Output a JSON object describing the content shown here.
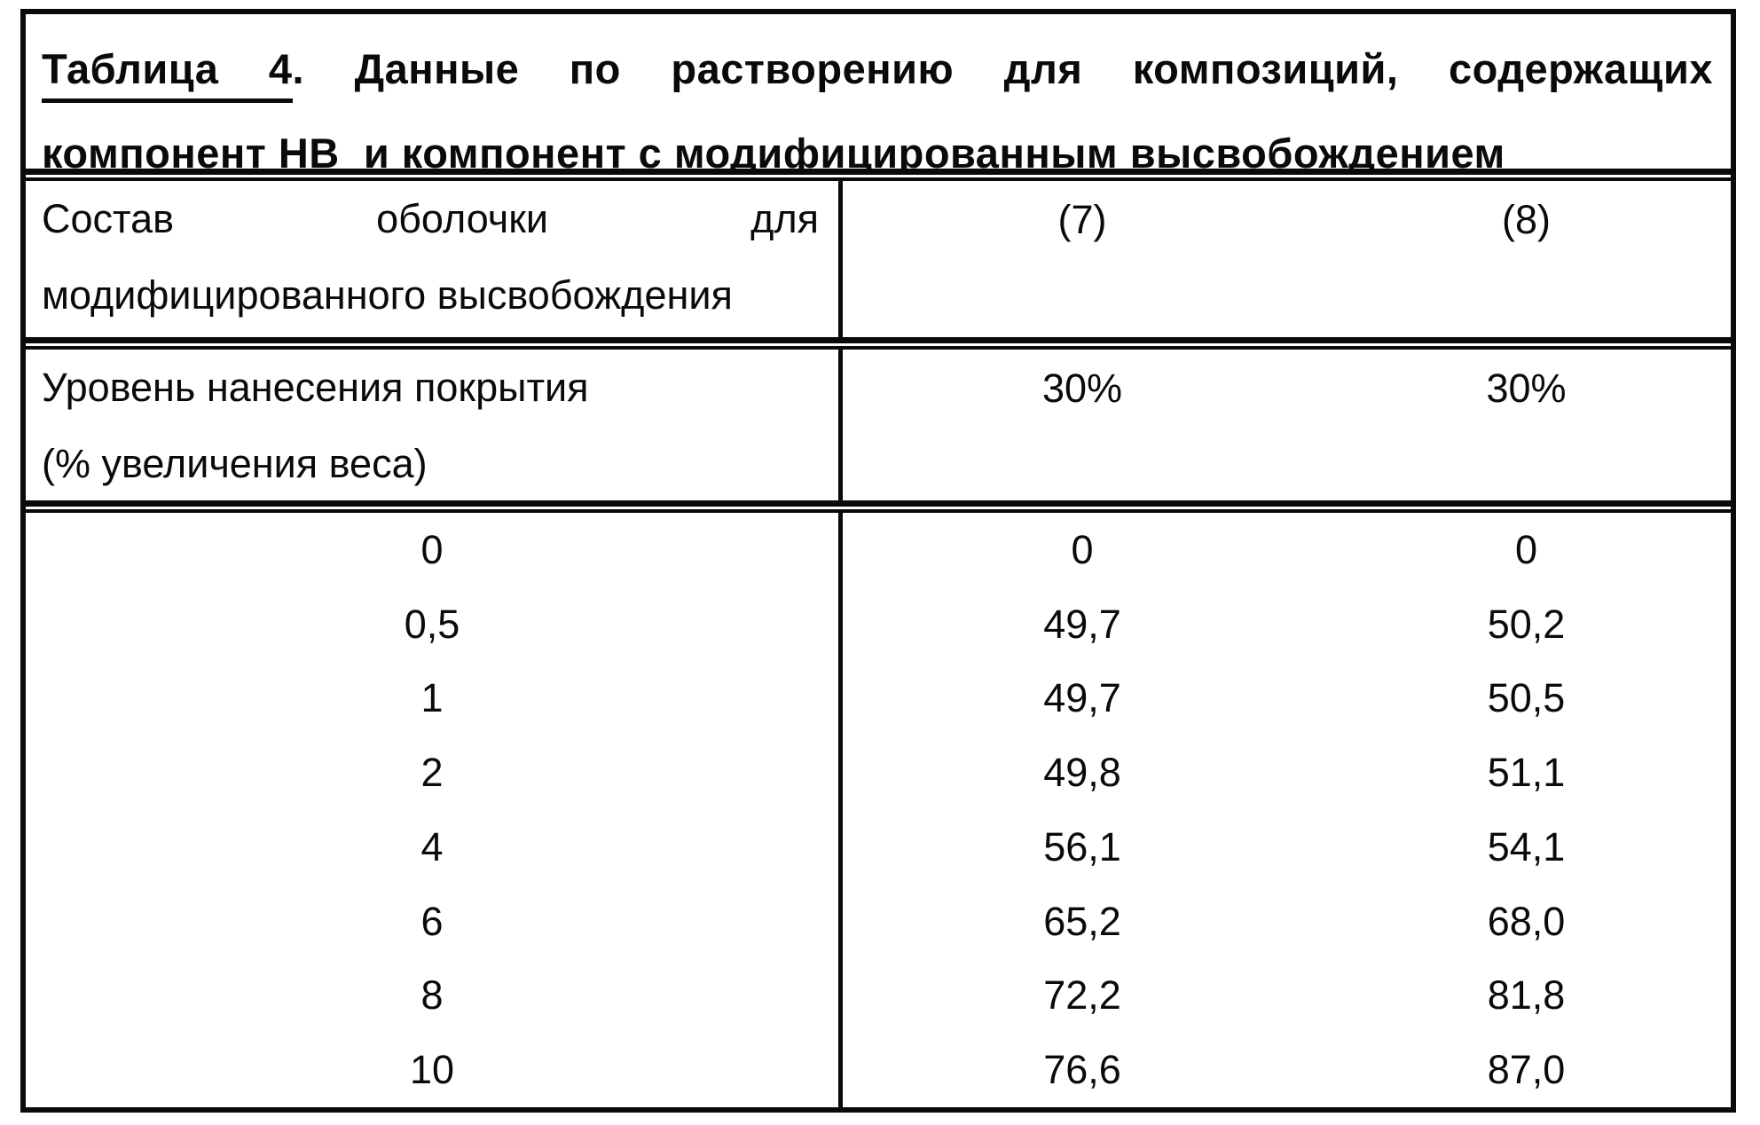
{
  "document": {
    "kind": "scanned patent table page",
    "language": "Russian",
    "ink_color": "#0a0a0a",
    "paper_color": "#ffffff"
  },
  "title": {
    "label": "Таблица 4",
    "line1_rest": ". Данные по растворению для композиций, содержащих",
    "line2": "компонент НВ  и компонент с модифицированным высвобождением"
  },
  "header": {
    "col1_line1": "Состав оболочки для",
    "col1_line2": "модифицированного высвобождения",
    "col7": "(7)",
    "col8": "(8)"
  },
  "coating_row": {
    "col1_line1": "Уровень нанесения покрытия",
    "col1_line2": "(% увеличения веса)",
    "col7": "30%",
    "col8": "30%"
  },
  "data_rows": [
    {
      "time": "0",
      "v7": "0",
      "v8": "0"
    },
    {
      "time": "0,5",
      "v7": "49,7",
      "v8": "50,2"
    },
    {
      "time": "1",
      "v7": "49,7",
      "v8": "50,5"
    },
    {
      "time": "2",
      "v7": "49,8",
      "v8": "51,1"
    },
    {
      "time": "4",
      "v7": "56,1",
      "v8": "54,1"
    },
    {
      "time": "6",
      "v7": "65,2",
      "v8": "68,0"
    },
    {
      "time": "8",
      "v7": "72,2",
      "v8": "81,8"
    },
    {
      "time": "10",
      "v7": "76,6",
      "v8": "87,0"
    }
  ],
  "chart_data": {
    "type": "table",
    "title": "Таблица 4. Данные по растворению для композиций, содержащих компонент НВ и компонент с модифицированным высвобождением",
    "columns": [
      "Состав оболочки для модифицированного высвобождения",
      "(7)",
      "(8)"
    ],
    "coating_level": {
      "label": "Уровень нанесения покрытия (% увеличения веса)",
      "(7)": "30%",
      "(8)": "30%"
    },
    "rows": [
      [
        0,
        0,
        0
      ],
      [
        0.5,
        49.7,
        50.2
      ],
      [
        1,
        49.7,
        50.5
      ],
      [
        2,
        49.8,
        51.1
      ],
      [
        4,
        56.1,
        54.1
      ],
      [
        6,
        65.2,
        68.0
      ],
      [
        8,
        72.2,
        81.8
      ],
      [
        10,
        76.6,
        87.0
      ]
    ]
  }
}
